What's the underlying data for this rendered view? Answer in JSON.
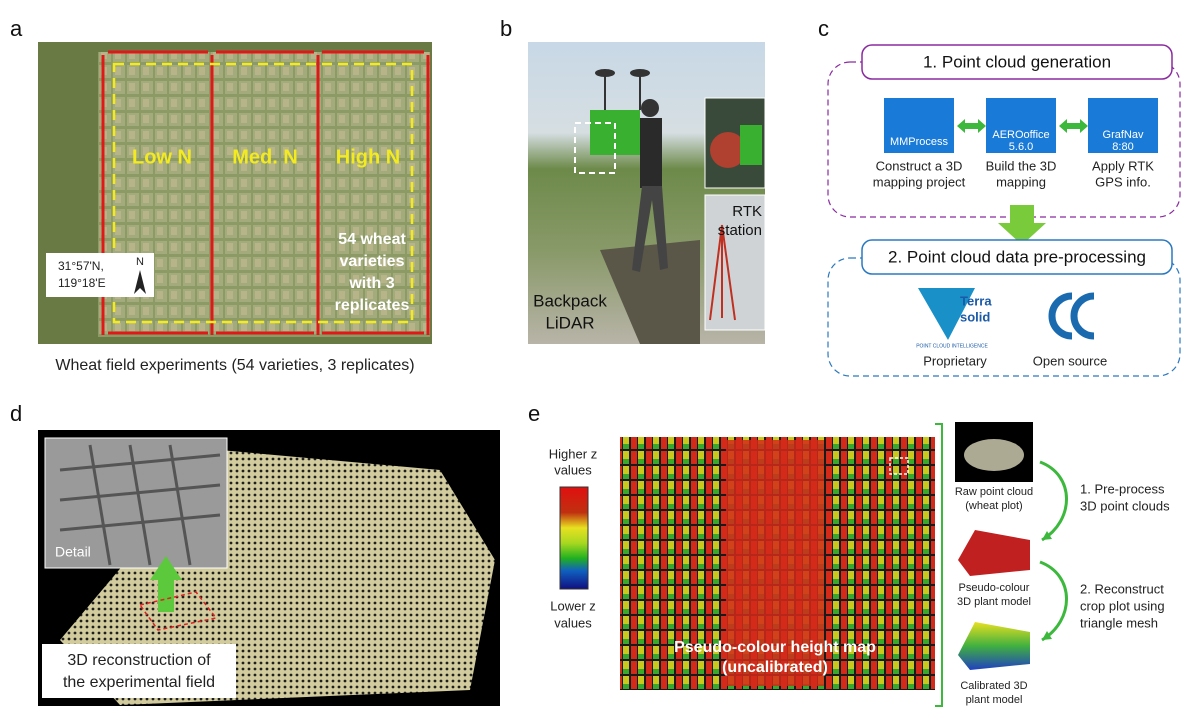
{
  "panel_a": {
    "label": "a",
    "plots": [
      "Low N",
      "Med. N",
      "High N"
    ],
    "varieties": [
      "54 wheat",
      "varieties",
      "with 3",
      "replicates"
    ],
    "coordinates": [
      "31°57'N,",
      "119°18'E"
    ],
    "north": "N",
    "caption": "Wheat field experiments (54 varieties, 3 replicates)"
  },
  "panel_b": {
    "label": "b",
    "station": [
      "RTK",
      "station"
    ],
    "device": [
      "Backpack",
      "LiDAR"
    ]
  },
  "panel_c": {
    "label": "c",
    "step1": {
      "title": "1. Point cloud generation",
      "software": [
        {
          "icon": [
            "MMProcess"
          ],
          "caption": [
            "Construct a 3D",
            "mapping project"
          ]
        },
        {
          "icon": [
            "AEROoffice",
            "5.6.0"
          ],
          "caption": [
            "Build the 3D",
            "mapping"
          ]
        },
        {
          "icon": [
            "GrafNav",
            "8:80"
          ],
          "caption": [
            "Apply RTK",
            "GPS info."
          ]
        }
      ]
    },
    "step2": {
      "title": "2. Point cloud data pre-processing",
      "terrasolid": [
        "Terra",
        "solid",
        "POINT CLOUD INTELLIGENCE"
      ],
      "tools": [
        "Proprietary",
        "Open source"
      ]
    }
  },
  "panel_d": {
    "label": "d",
    "detail": "Detail",
    "caption": [
      "3D reconstruction of",
      "the experimental field"
    ]
  },
  "panel_e": {
    "label": "e",
    "high": [
      "Higher z",
      "values"
    ],
    "low": [
      "Lower z",
      "values"
    ],
    "map_title": [
      "Pseudo-colour height map",
      "(uncalibrated)"
    ],
    "thumbnails": [
      [
        "Raw point cloud",
        "(wheat plot)"
      ],
      [
        "Pseudo-colour",
        "3D plant model"
      ],
      [
        "Calibrated 3D",
        "plant model"
      ]
    ],
    "steps": [
      [
        "1. Pre-process",
        "3D point clouds"
      ],
      [
        "2. Reconstruct",
        "crop plot using",
        "triangle mesh"
      ]
    ]
  }
}
